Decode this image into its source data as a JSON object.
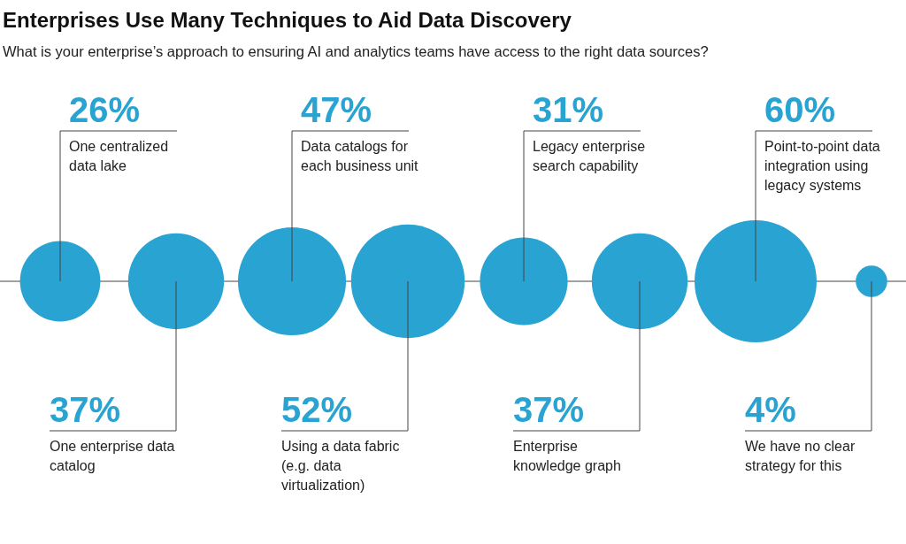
{
  "chart_data": {
    "type": "other",
    "title": "Enterprises Use Many Techniques to Aid Data Discovery",
    "subtitle": "What is your enterprise’s approach to ensuring AI and analytics teams have access to the right data sources?",
    "categories": [
      "One centralized data lake",
      "One enterprise data catalog",
      "Data catalogs for each business unit",
      "Using a data fabric (e.g. data virtualization)",
      "Legacy enterprise search capability",
      "Enterprise knowledge graph",
      "Point-to-point data integration using legacy systems",
      "We have no clear strategy for this"
    ],
    "values": [
      26,
      37,
      47,
      52,
      31,
      37,
      60,
      4
    ],
    "value_labels": [
      "26%",
      "37%",
      "47%",
      "52%",
      "31%",
      "37%",
      "60%",
      "4%"
    ],
    "color": "#29a3d1"
  }
}
